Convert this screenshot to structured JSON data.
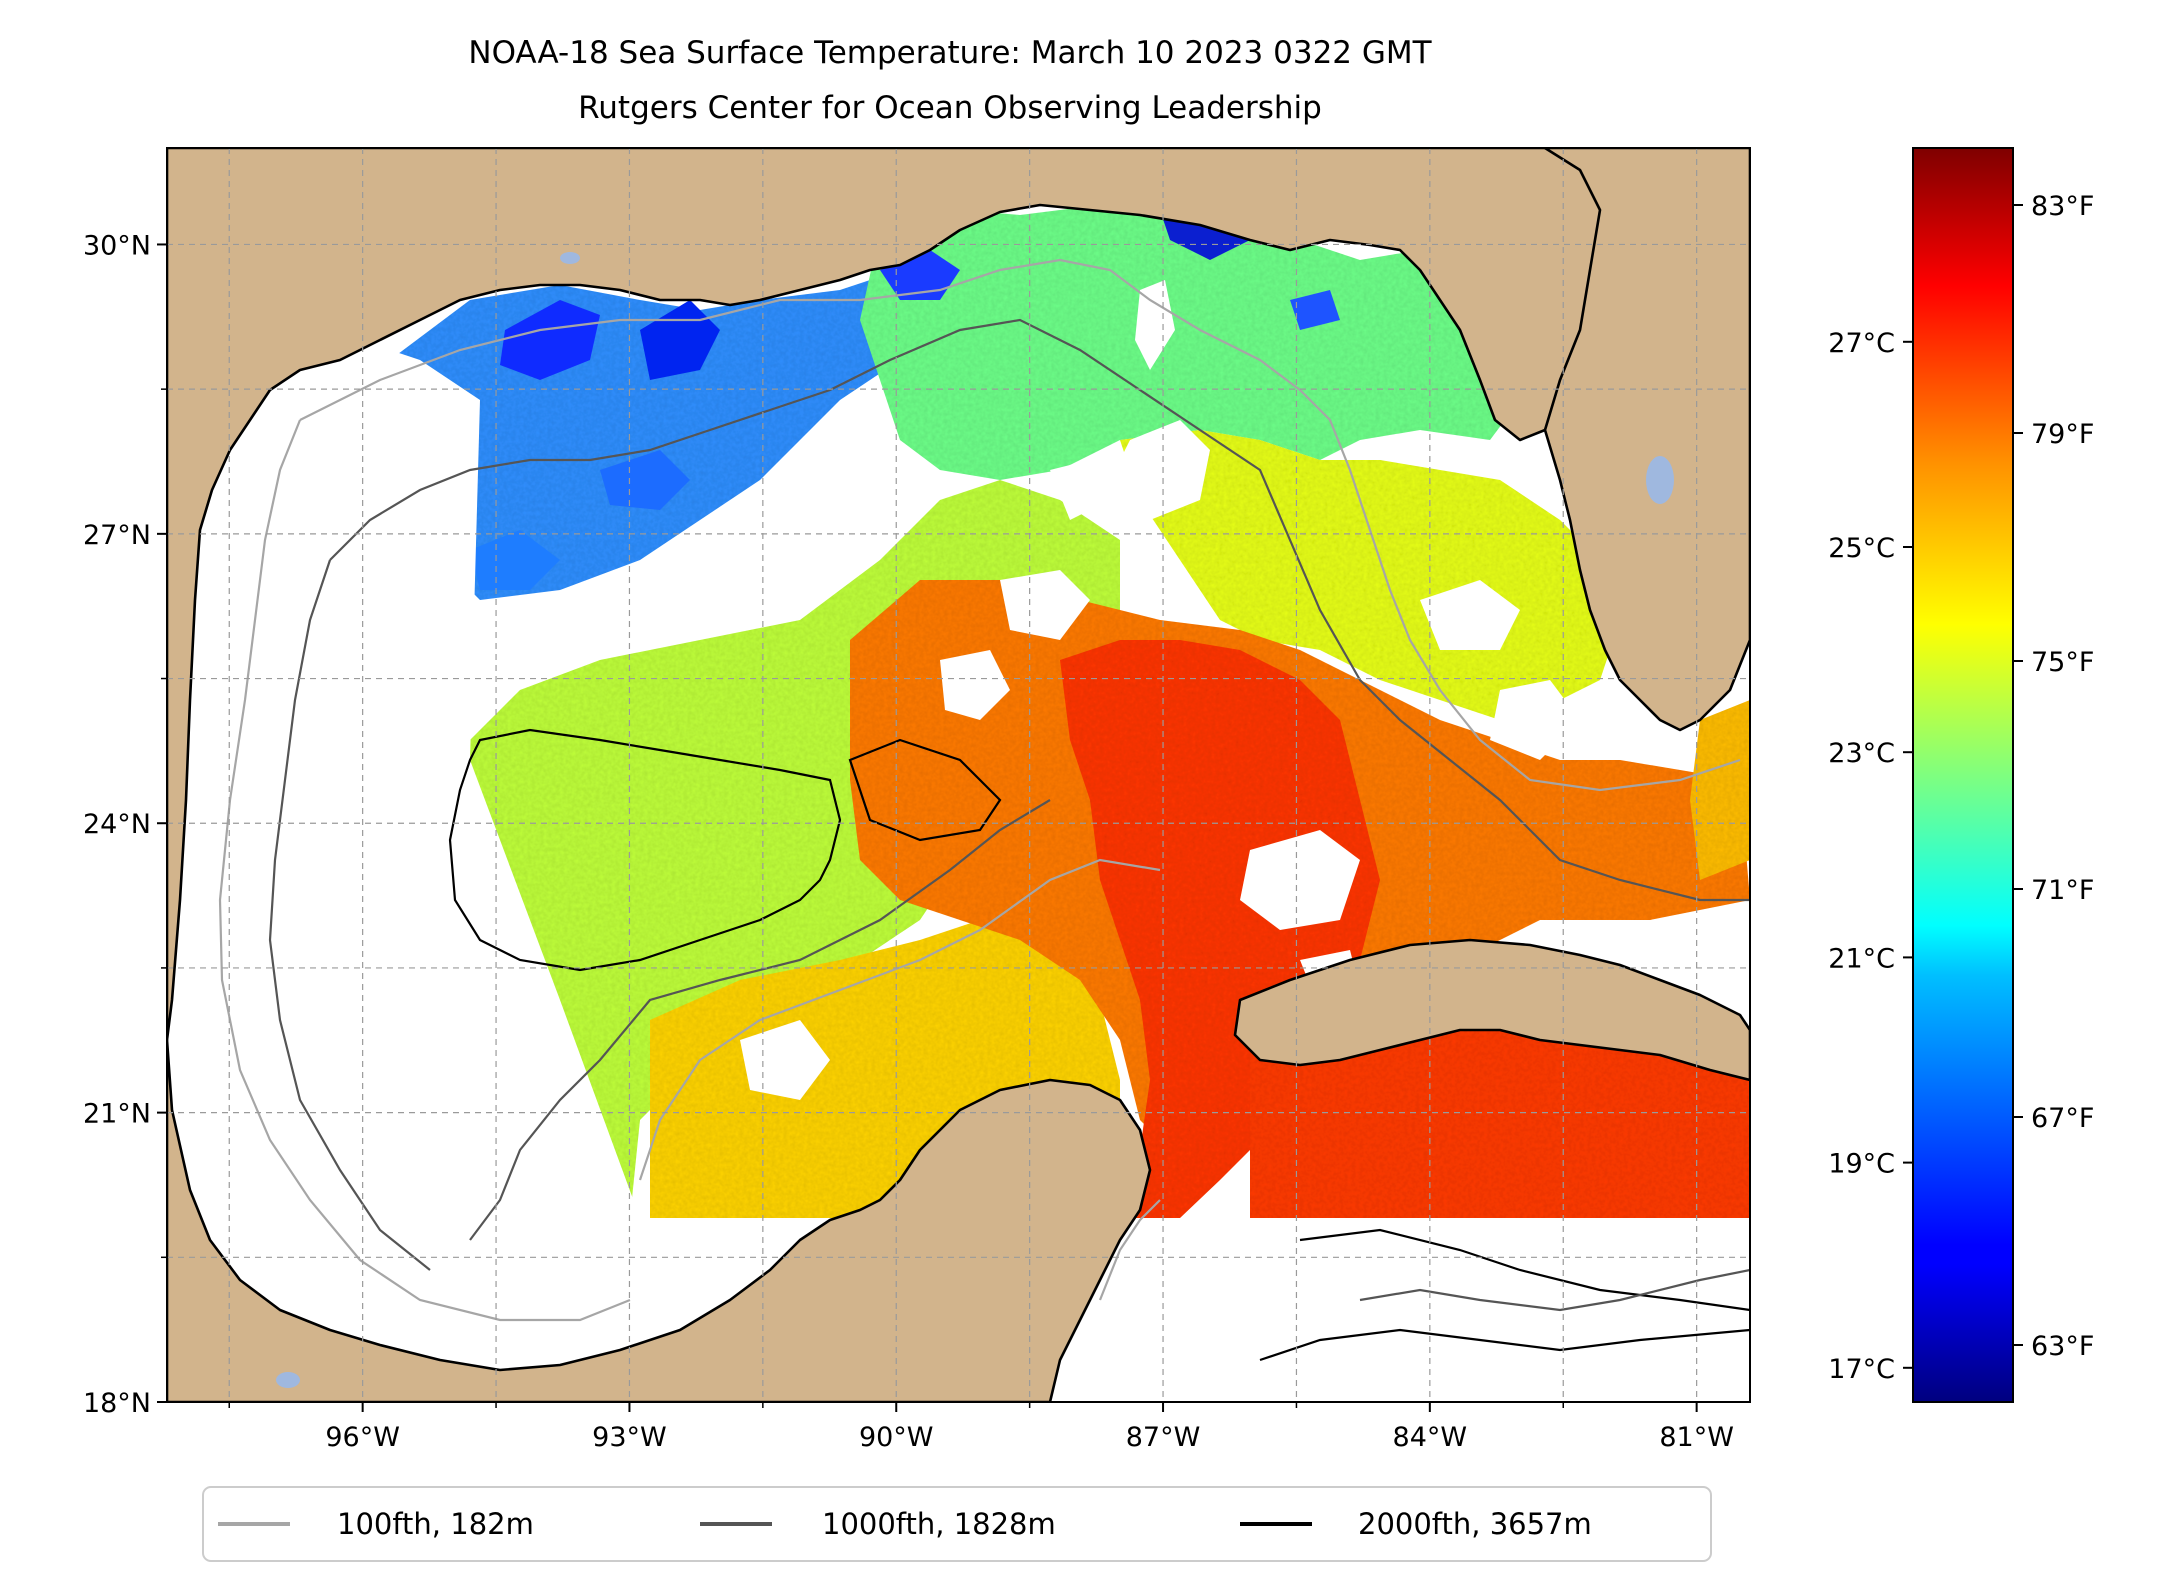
{
  "title": {
    "line1": "NOAA-18 Sea Surface Temperature: March 10 2023 0322 GMT",
    "line2": "Rutgers Center for Ocean Observing Leadership"
  },
  "map": {
    "extent": {
      "lon_min": -98.2,
      "lon_max": -80.4,
      "lat_min": 18.0,
      "lat_max": 31.0
    },
    "lat_ticks": [
      {
        "value": 30,
        "label": "30°N"
      },
      {
        "value": 27,
        "label": "27°N"
      },
      {
        "value": 24,
        "label": "24°N"
      },
      {
        "value": 21,
        "label": "21°N"
      },
      {
        "value": 18,
        "label": "18°N"
      }
    ],
    "lon_ticks": [
      {
        "value": -96,
        "label": "96°W"
      },
      {
        "value": -93,
        "label": "93°W"
      },
      {
        "value": -90,
        "label": "90°W"
      },
      {
        "value": -87,
        "label": "87°W"
      },
      {
        "value": -84,
        "label": "84°W"
      },
      {
        "value": -81,
        "label": "81°W"
      }
    ],
    "minor_grid": true,
    "colors": {
      "land": "#d2b48c",
      "no_data": "#ffffff",
      "coastline": "#000000",
      "lakes": "#9fb8df"
    }
  },
  "colorbar": {
    "colormap": "jet",
    "range_f": [
      62,
      84
    ],
    "fahrenheit_ticks": [
      {
        "value": 83,
        "label": "83°F"
      },
      {
        "value": 79,
        "label": "79°F"
      },
      {
        "value": 75,
        "label": "75°F"
      },
      {
        "value": 71,
        "label": "71°F"
      },
      {
        "value": 67,
        "label": "67°F"
      },
      {
        "value": 63,
        "label": "63°F"
      }
    ],
    "celsius_ticks": [
      {
        "value": 27,
        "label": "27°C"
      },
      {
        "value": 25,
        "label": "25°C"
      },
      {
        "value": 23,
        "label": "23°C"
      },
      {
        "value": 21,
        "label": "21°C"
      },
      {
        "value": 19,
        "label": "19°C"
      },
      {
        "value": 17,
        "label": "17°C"
      }
    ]
  },
  "legend": {
    "items": [
      {
        "label": "100fth, 182m",
        "color": "#a6a6a6"
      },
      {
        "label": "1000fth, 1828m",
        "color": "#555555"
      },
      {
        "label": "2000fth, 3657m",
        "color": "#000000"
      }
    ]
  }
}
